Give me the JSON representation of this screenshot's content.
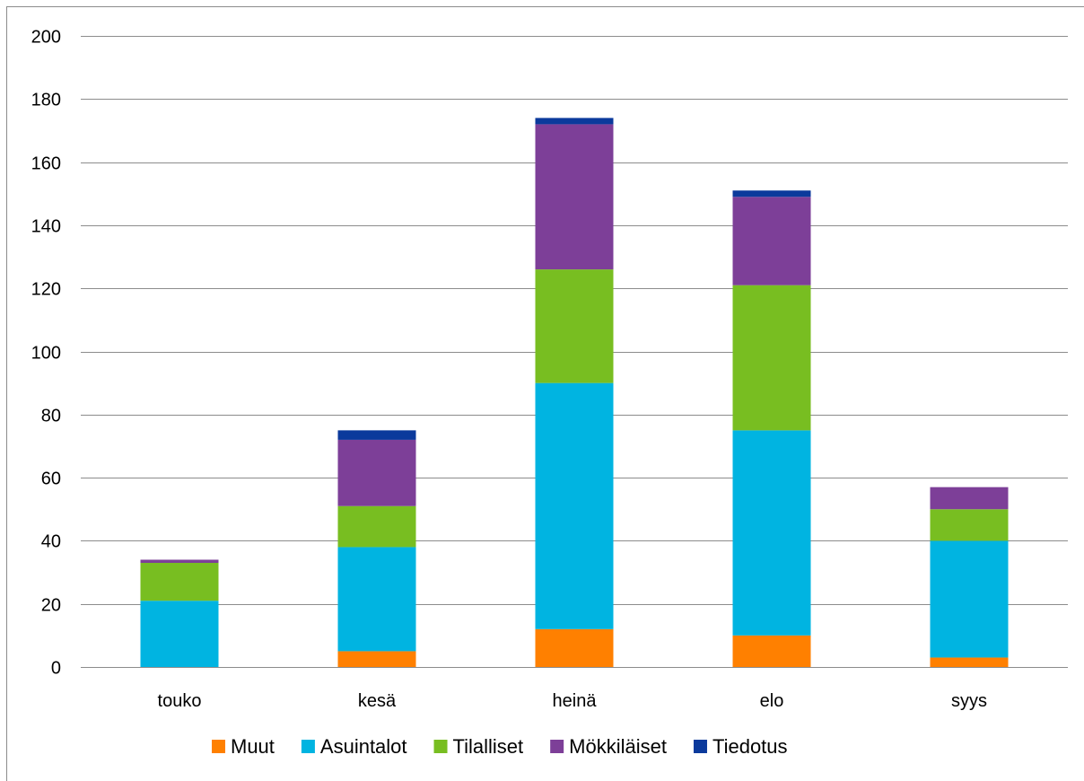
{
  "chart_data": {
    "type": "bar",
    "stacked": true,
    "categories": [
      "touko",
      "kesä",
      "heinä",
      "elo",
      "syys"
    ],
    "series": [
      {
        "name": "Muut",
        "color": "#ff8000",
        "values": [
          0,
          5,
          12,
          10,
          3
        ]
      },
      {
        "name": "Asuintalot",
        "color": "#00b4e1",
        "values": [
          21,
          33,
          78,
          65,
          37
        ]
      },
      {
        "name": "Tilalliset",
        "color": "#78be21",
        "values": [
          12,
          13,
          36,
          46,
          10
        ]
      },
      {
        "name": "Mökkiläiset",
        "color": "#7d3f98",
        "values": [
          1,
          21,
          46,
          28,
          7
        ]
      },
      {
        "name": "Tiedotus",
        "color": "#0b3a9c",
        "values": [
          0,
          3,
          2,
          2,
          0
        ]
      }
    ],
    "y_ticks": [
      "0",
      "20",
      "40",
      "60",
      "80",
      "100",
      "120",
      "140",
      "160",
      "180",
      "200"
    ],
    "ylim": [
      0,
      200
    ],
    "grid": true,
    "legend_position": "bottom"
  }
}
